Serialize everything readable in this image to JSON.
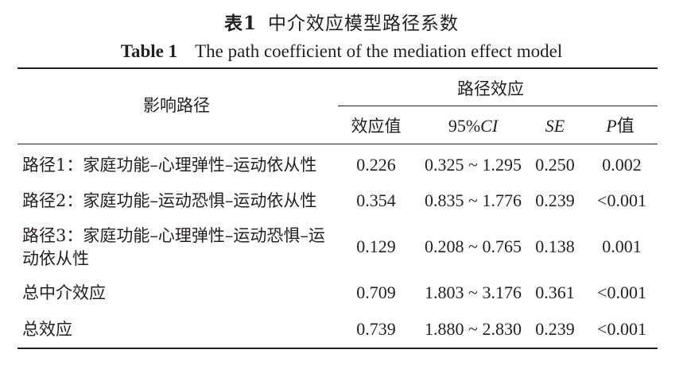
{
  "caption": {
    "cn_label": "表1",
    "cn_title": "中介效应模型路径系数",
    "en_label": "Table 1",
    "en_title": "The path coefficient of the mediation effect model"
  },
  "headers": {
    "path": "影响路径",
    "effect_group": "路径效应",
    "effect_value": "效应值",
    "ci_prefix": "95%",
    "ci_italic": "CI",
    "se": "SE",
    "p_italic": "P",
    "p_suffix": "值"
  },
  "rows": [
    {
      "label": "路径1：家庭功能–心理弹性–运动依从性",
      "label2": "",
      "value": "0.226",
      "ci": "0.325 ~ 1.295",
      "se": "0.250",
      "p": "0.002"
    },
    {
      "label": "路径2：家庭功能–运动恐惧–运动依从性",
      "label2": "",
      "value": "0.354",
      "ci": "0.835 ~ 1.776",
      "se": "0.239",
      "p": "<0.001"
    },
    {
      "label": "路径3：家庭功能–心理弹性–运动恐惧–运",
      "label2": "动依从性",
      "value": "0.129",
      "ci": "0.208 ~ 0.765",
      "se": "0.138",
      "p": "0.001"
    },
    {
      "label": "总中介效应",
      "label2": "",
      "value": "0.709",
      "ci": "1.803 ~ 3.176",
      "se": "0.361",
      "p": "<0.001"
    },
    {
      "label": "总效应",
      "label2": "",
      "value": "0.739",
      "ci": "1.880 ~ 2.830",
      "se": "0.239",
      "p": "<0.001"
    }
  ]
}
